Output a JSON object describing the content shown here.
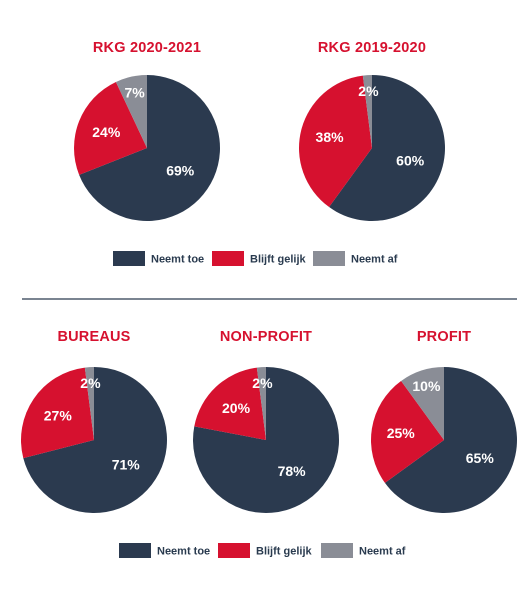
{
  "colors": {
    "neemt_toe": "#2b3a4f",
    "blijft_gelijk": "#d6112f",
    "neemt_af": "#8a8d96"
  },
  "legend": {
    "neemt_toe": "Neemt toe",
    "blijft_gelijk": "Blijft gelijk",
    "neemt_af": "Neemt af"
  },
  "chart_data": [
    {
      "type": "pie",
      "title": "RKG 2020-2021",
      "slices": [
        {
          "key": "neemt_toe",
          "value": 69,
          "label": "69%"
        },
        {
          "key": "blijft_gelijk",
          "value": 24,
          "label": "24%"
        },
        {
          "key": "neemt_af",
          "value": 7,
          "label": "7%"
        }
      ]
    },
    {
      "type": "pie",
      "title": "RKG 2019-2020",
      "slices": [
        {
          "key": "neemt_toe",
          "value": 60,
          "label": "60%"
        },
        {
          "key": "blijft_gelijk",
          "value": 38,
          "label": "38%"
        },
        {
          "key": "neemt_af",
          "value": 2,
          "label": "2%"
        }
      ]
    },
    {
      "type": "pie",
      "title": "BUREAUS",
      "slices": [
        {
          "key": "neemt_toe",
          "value": 71,
          "label": "71%"
        },
        {
          "key": "blijft_gelijk",
          "value": 27,
          "label": "27%"
        },
        {
          "key": "neemt_af",
          "value": 2,
          "label": "2%"
        }
      ]
    },
    {
      "type": "pie",
      "title": "NON-PROFIT",
      "slices": [
        {
          "key": "neemt_toe",
          "value": 78,
          "label": "78%"
        },
        {
          "key": "blijft_gelijk",
          "value": 20,
          "label": "20%"
        },
        {
          "key": "neemt_af",
          "value": 2,
          "label": "2%"
        }
      ]
    },
    {
      "type": "pie",
      "title": "PROFIT",
      "slices": [
        {
          "key": "neemt_toe",
          "value": 65,
          "label": "65%"
        },
        {
          "key": "blijft_gelijk",
          "value": 25,
          "label": "25%"
        },
        {
          "key": "neemt_af",
          "value": 10,
          "label": "10%"
        }
      ]
    }
  ]
}
